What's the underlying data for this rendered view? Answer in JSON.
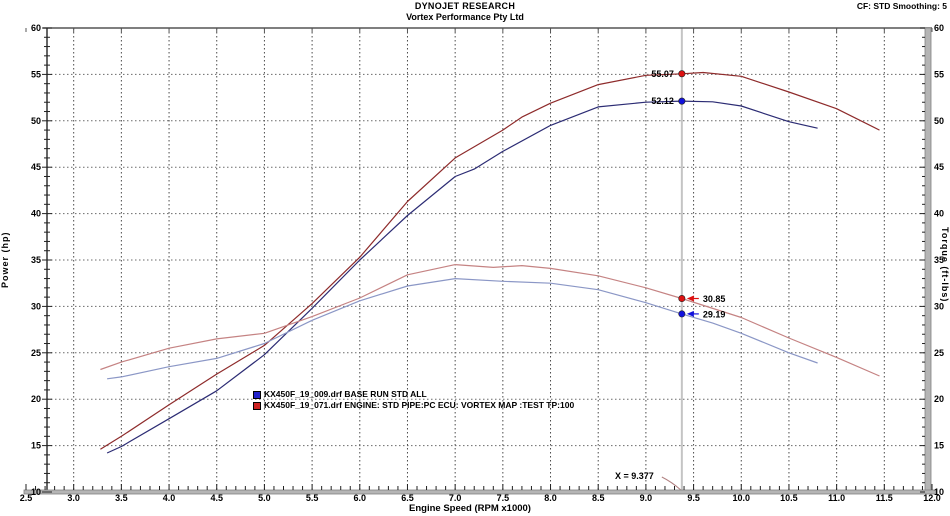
{
  "header": {
    "line1": "DYNOJET RESEARCH",
    "line2": "Vortex Performance Pty Ltd",
    "settings": "CF: STD  Smoothing: 5"
  },
  "legend": {
    "runs": [
      {
        "color": "#2222cc",
        "label": "KX450F_19_009.drf BASE RUN STD ALL"
      },
      {
        "color": "#cc2222",
        "label": "KX450F_19_071.drf ENGINE: STD PIPE:PC ECU: VORTEX MAP :TEST TP:100"
      }
    ]
  },
  "cursor": {
    "x_label": "X = 9.377",
    "x_value": 9.377
  },
  "chart_data": {
    "type": "line",
    "title": "DYNOJET RESEARCH",
    "subtitle": "Vortex Performance Pty Ltd",
    "xlabel": "Engine Speed (RPM x1000)",
    "ylabel_left": "Power (hp)",
    "ylabel_right": "Torque (ft-lbs)",
    "xlim": [
      2.5,
      12.0
    ],
    "ylim": [
      10,
      60
    ],
    "x_tick_step": 0.5,
    "y_tick_step": 5,
    "grid": true,
    "cursor_x": 9.377,
    "series": [
      {
        "name": "Power KX450F_19_071 Vortex map",
        "unit": "hp",
        "color": "#8e2b2b",
        "marker": "#dd1111",
        "cursor_value": 55.07,
        "cursor_label": "55.07",
        "label_side": "left",
        "points": [
          [
            3.28,
            14.6
          ],
          [
            3.5,
            16.0
          ],
          [
            4.0,
            19.4
          ],
          [
            4.5,
            22.7
          ],
          [
            5.0,
            25.8
          ],
          [
            5.5,
            30.3
          ],
          [
            6.0,
            35.3
          ],
          [
            6.5,
            41.3
          ],
          [
            7.0,
            46.0
          ],
          [
            7.5,
            49.0
          ],
          [
            7.7,
            50.4
          ],
          [
            8.0,
            51.9
          ],
          [
            8.5,
            53.9
          ],
          [
            9.0,
            54.9
          ],
          [
            9.377,
            55.07
          ],
          [
            9.6,
            55.2
          ],
          [
            10.0,
            54.8
          ],
          [
            10.5,
            53.1
          ],
          [
            11.0,
            51.3
          ],
          [
            11.45,
            49.0
          ]
        ]
      },
      {
        "name": "Power KX450F_19_009 base run",
        "unit": "hp",
        "color": "#2c2c74",
        "marker": "#1111dd",
        "cursor_value": 52.12,
        "cursor_label": "52.12",
        "label_side": "left",
        "points": [
          [
            3.35,
            14.2
          ],
          [
            3.5,
            14.9
          ],
          [
            4.0,
            17.9
          ],
          [
            4.5,
            20.9
          ],
          [
            5.0,
            24.8
          ],
          [
            5.5,
            29.8
          ],
          [
            6.0,
            35.0
          ],
          [
            6.5,
            39.8
          ],
          [
            7.0,
            44.0
          ],
          [
            7.2,
            44.8
          ],
          [
            7.5,
            46.7
          ],
          [
            8.0,
            49.5
          ],
          [
            8.5,
            51.5
          ],
          [
            9.0,
            52.0
          ],
          [
            9.377,
            52.12
          ],
          [
            9.7,
            52.05
          ],
          [
            10.0,
            51.6
          ],
          [
            10.5,
            49.9
          ],
          [
            10.8,
            49.2
          ]
        ]
      },
      {
        "name": "Torque KX450F_19_071 Vortex map",
        "unit": "ft-lbs",
        "color": "#c58383",
        "marker": "#dd1111",
        "cursor_value": 30.85,
        "cursor_label": "30.85",
        "label_side": "right",
        "points": [
          [
            3.28,
            23.2
          ],
          [
            3.5,
            24.0
          ],
          [
            4.0,
            25.5
          ],
          [
            4.5,
            26.5
          ],
          [
            5.0,
            27.1
          ],
          [
            5.5,
            28.9
          ],
          [
            6.0,
            30.9
          ],
          [
            6.5,
            33.4
          ],
          [
            7.0,
            34.5
          ],
          [
            7.4,
            34.2
          ],
          [
            7.7,
            34.4
          ],
          [
            8.0,
            34.1
          ],
          [
            8.5,
            33.3
          ],
          [
            9.0,
            32.0
          ],
          [
            9.377,
            30.85
          ],
          [
            10.0,
            28.8
          ],
          [
            10.5,
            26.6
          ],
          [
            11.0,
            24.5
          ],
          [
            11.45,
            22.5
          ]
        ]
      },
      {
        "name": "Torque KX450F_19_009 base run",
        "unit": "ft-lbs",
        "color": "#8b97c6",
        "marker": "#1111dd",
        "cursor_value": 29.19,
        "cursor_label": "29.19",
        "label_side": "right",
        "points": [
          [
            3.35,
            22.2
          ],
          [
            3.5,
            22.4
          ],
          [
            4.0,
            23.5
          ],
          [
            4.5,
            24.4
          ],
          [
            5.0,
            26.0
          ],
          [
            5.5,
            28.5
          ],
          [
            6.0,
            30.6
          ],
          [
            6.5,
            32.2
          ],
          [
            7.0,
            33.0
          ],
          [
            7.5,
            32.7
          ],
          [
            8.0,
            32.5
          ],
          [
            8.5,
            31.8
          ],
          [
            9.0,
            30.4
          ],
          [
            9.377,
            29.19
          ],
          [
            9.7,
            28.2
          ],
          [
            10.0,
            27.1
          ],
          [
            10.5,
            25.0
          ],
          [
            10.8,
            23.9
          ]
        ]
      }
    ]
  }
}
